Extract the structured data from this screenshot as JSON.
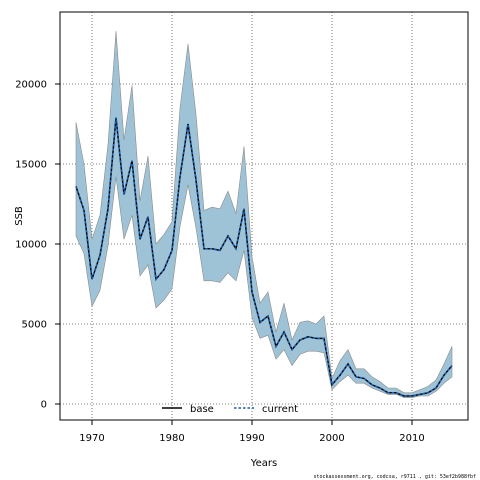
{
  "chart_data": {
    "type": "line",
    "title": "",
    "xlabel": "Years",
    "ylabel": "SSB",
    "xlim": [
      1966,
      2017
    ],
    "ylim": [
      -1000,
      24500
    ],
    "x_ticks": [
      1970,
      1980,
      1990,
      2000,
      2010
    ],
    "y_ticks": [
      0,
      5000,
      10000,
      15000,
      20000
    ],
    "grid": true,
    "legend_position": "bottom-center",
    "x": [
      1968,
      1969,
      1970,
      1971,
      1972,
      1973,
      1974,
      1975,
      1976,
      1977,
      1978,
      1979,
      1980,
      1981,
      1982,
      1983,
      1984,
      1985,
      1986,
      1987,
      1988,
      1989,
      1990,
      1991,
      1992,
      1993,
      1994,
      1995,
      1996,
      1997,
      1998,
      1999,
      2000,
      2001,
      2002,
      2003,
      2004,
      2005,
      2006,
      2007,
      2008,
      2009,
      2010,
      2011,
      2012,
      2013,
      2014,
      2015
    ],
    "series": [
      {
        "name": "base",
        "style": "solid",
        "color": "#000000",
        "values": [
          13600,
          12100,
          7800,
          9300,
          12200,
          17900,
          13100,
          15200,
          10300,
          11700,
          7800,
          8400,
          9600,
          14200,
          17500,
          14000,
          9700,
          9700,
          9600,
          10500,
          9700,
          12200,
          7000,
          5100,
          5500,
          3600,
          4500,
          3400,
          4000,
          4200,
          4100,
          4100,
          1200,
          1800,
          2500,
          1700,
          1600,
          1200,
          1000,
          700,
          700,
          500,
          500,
          600,
          700,
          1000,
          1800,
          2400
        ]
      },
      {
        "name": "current",
        "style": "dashed",
        "color": "#1a5fb4",
        "values": [
          13600,
          12100,
          7800,
          9300,
          12200,
          17900,
          13100,
          15200,
          10300,
          11700,
          7800,
          8400,
          9600,
          14200,
          17500,
          14000,
          9700,
          9700,
          9600,
          10500,
          9700,
          12200,
          7000,
          5100,
          5500,
          3600,
          4500,
          3400,
          4000,
          4200,
          4100,
          4100,
          1200,
          1800,
          2500,
          1700,
          1600,
          1200,
          1000,
          700,
          700,
          500,
          500,
          600,
          700,
          1000,
          1800,
          2400
        ]
      }
    ],
    "band": {
      "color": "#9fc3d6",
      "upper": [
        17600,
        15000,
        10300,
        11800,
        16200,
        23300,
        16500,
        19900,
        12700,
        15500,
        10000,
        10600,
        11400,
        18500,
        22500,
        18100,
        12100,
        12300,
        12200,
        13300,
        11900,
        16100,
        9200,
        6300,
        7000,
        4500,
        6300,
        4000,
        5100,
        5200,
        5000,
        5500,
        1600,
        2700,
        3400,
        2200,
        2200,
        1700,
        1400,
        1000,
        1000,
        700,
        700,
        900,
        1100,
        1500,
        2500,
        3600
      ],
      "lower": [
        10500,
        9400,
        6100,
        7100,
        9900,
        14200,
        10300,
        11800,
        8000,
        8700,
        6000,
        6500,
        7200,
        11100,
        13700,
        11000,
        7700,
        7700,
        7600,
        8200,
        7700,
        9600,
        5400,
        4100,
        4300,
        2800,
        3400,
        2400,
        3100,
        3300,
        3300,
        3200,
        900,
        1400,
        1800,
        1300,
        1300,
        1000,
        800,
        600,
        600,
        400,
        400,
        500,
        500,
        800,
        1300,
        1700
      ]
    },
    "footnote": "stockassessment.org, codcsa, r9711 , git: 53ef2b988fbf"
  }
}
